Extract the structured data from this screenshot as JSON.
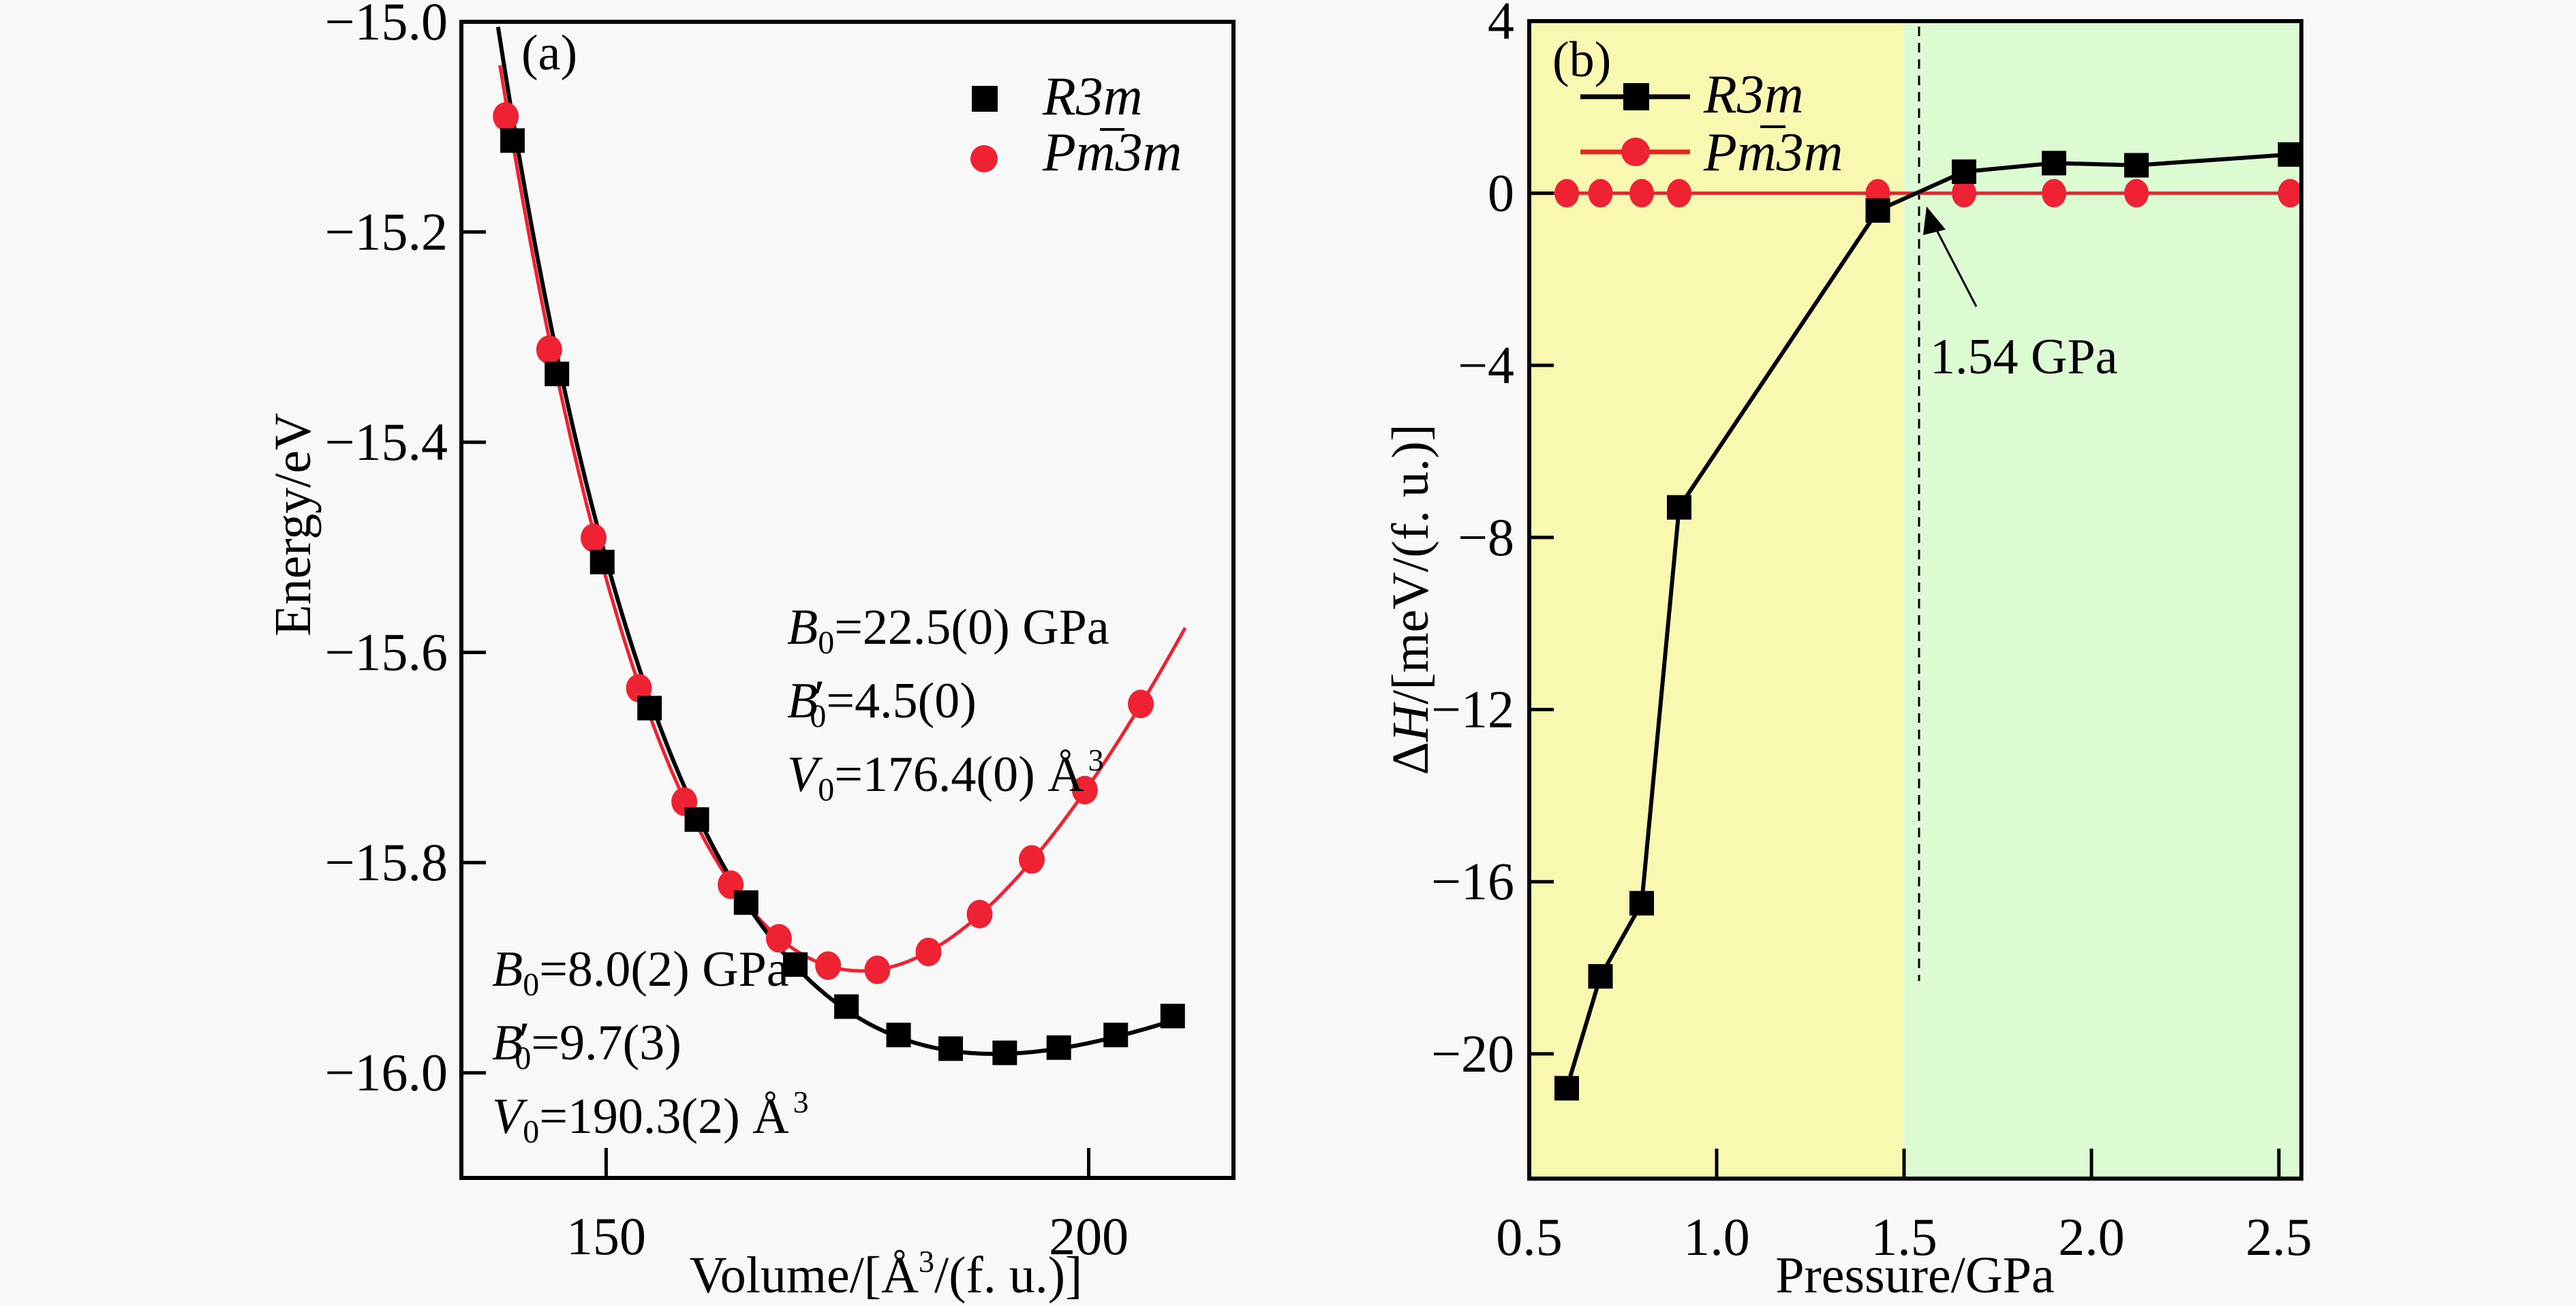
{
  "figure": {
    "background": "#f8f8f8"
  },
  "chart_data": [
    {
      "id": "a",
      "type": "scatter",
      "panel_label": "(a)",
      "title": "",
      "xlabel": "Volume/[Å³/(f. u.)]",
      "xlabel_parts": {
        "pre": "Volume/[Å",
        "sup": "3",
        "post": "/(f. u.)]"
      },
      "ylabel": "Energy/eV",
      "xlim": [
        135,
        215
      ],
      "ylim": [
        -16.1,
        -15.0
      ],
      "xticks": [
        150,
        200
      ],
      "xtick_labels": [
        "150",
        "200"
      ],
      "yticks": [
        -15.0,
        -15.2,
        -15.4,
        -15.6,
        -15.8,
        -16.0
      ],
      "ytick_labels": [
        "−15.0",
        "−15.2",
        "−15.4",
        "−15.6",
        "−15.8",
        "−16.0"
      ],
      "grid": false,
      "legend_position": "top-right",
      "series": [
        {
          "name": "R3m",
          "legend_label": "R3m",
          "marker": "square",
          "color": "#000000",
          "x": [
            140.3,
            144.9,
            149.6,
            154.5,
            159.4,
            164.5,
            169.6,
            174.9,
            180.3,
            185.7,
            191.3,
            196.9,
            202.8,
            208.7
          ],
          "y": [
            -15.113,
            -15.335,
            -15.514,
            -15.653,
            -15.759,
            -15.838,
            -15.897,
            -15.937,
            -15.964,
            -15.977,
            -15.981,
            -15.976,
            -15.964,
            -15.946
          ],
          "fit": {
            "model": "Birch-Murnaghan",
            "B0_GPa": 8.0,
            "B0_prime": 9.7,
            "V0": 190.3,
            "E0": -15.982,
            "x_range": [
              138.8,
              208.7
            ]
          }
        },
        {
          "name": "Pm-3m",
          "legend_label": "Pm3m",
          "legend_overbar_char": "3",
          "marker": "circle",
          "color": "#ee2233",
          "x": [
            139.6,
            144.1,
            148.7,
            153.4,
            158.1,
            162.9,
            167.9,
            173.0,
            178.1,
            183.4,
            188.7,
            194.1,
            199.6,
            205.4
          ],
          "y": [
            -15.09,
            -15.312,
            -15.491,
            -15.634,
            -15.742,
            -15.821,
            -15.872,
            -15.898,
            -15.902,
            -15.885,
            -15.849,
            -15.797,
            -15.731,
            -15.649
          ],
          "fit": {
            "model": "Birch-Murnaghan",
            "B0_GPa": 22.5,
            "B0_prime": 4.5,
            "V0": 176.4,
            "E0": -15.903,
            "x_range": [
              139.0,
              210.0
            ]
          }
        }
      ],
      "annotations": [
        {
          "color": "#e8283c",
          "lines": [
            {
              "sym": "B",
              "sub": "0",
              "prime": false,
              "text": "=22.5(0) GPa"
            },
            {
              "sym": "B",
              "sub": "0",
              "prime": true,
              "text": "=4.5(0)"
            },
            {
              "sym": "V",
              "sub": "0",
              "prime": false,
              "text": "=176.4(0) Å",
              "sup": "3"
            }
          ]
        },
        {
          "color": "#000000",
          "lines": [
            {
              "sym": "B",
              "sub": "0",
              "prime": false,
              "text": "=8.0(2) GPa"
            },
            {
              "sym": "B",
              "sub": "0",
              "prime": true,
              "text": "=9.7(3)"
            },
            {
              "sym": "V",
              "sub": "0",
              "prime": false,
              "text": "=190.3(2) Å",
              "sup": "3"
            }
          ]
        }
      ]
    },
    {
      "id": "b",
      "type": "line",
      "panel_label": "(b)",
      "title": "",
      "xlabel": "Pressure/GPa",
      "ylabel": "ΔH/[meV/(f. u.)]",
      "ylabel_parts": {
        "delta": "Δ",
        "sym": "H",
        "post": "/[meV/(f. u.)]"
      },
      "xlim": [
        0.5,
        2.56
      ],
      "ylim": [
        -22.9,
        4
      ],
      "xticks": [
        0.5,
        1.0,
        1.5,
        2.0,
        2.5
      ],
      "xtick_labels": [
        "0.5",
        "1.0",
        "1.5",
        "2.0",
        "2.5"
      ],
      "yticks": [
        4,
        0,
        -4,
        -8,
        -12,
        -16,
        -20
      ],
      "ytick_labels": [
        "4",
        "0",
        "−4",
        "−8",
        "−12",
        "−16",
        "−20"
      ],
      "grid": false,
      "legend_position": "top-left",
      "regions": [
        {
          "name": "R3m-stable",
          "x_from": 0.5,
          "x_to": 1.5,
          "color": "#f8f8b0"
        },
        {
          "name": "Pm-3m-stable",
          "x_from": 1.5,
          "x_to": 2.56,
          "color": "#dcfbd2"
        }
      ],
      "transition": {
        "pressure": 1.54,
        "label": "1.54 GPa"
      },
      "series": [
        {
          "name": "R3m",
          "legend_label": "R3m",
          "marker": "square",
          "color": "#000000",
          "x": [
            0.6,
            0.69,
            0.8,
            0.9,
            1.43,
            1.66,
            1.9,
            2.12,
            2.53
          ],
          "y": [
            -20.8,
            -18.2,
            -16.5,
            -7.3,
            -0.4,
            0.5,
            0.7,
            0.65,
            0.9
          ]
        },
        {
          "name": "Pm-3m",
          "legend_label": "Pm3m",
          "legend_overbar_char": "3",
          "marker": "circle",
          "color": "#ee2233",
          "x": [
            0.6,
            0.69,
            0.8,
            0.9,
            1.43,
            1.66,
            1.9,
            2.12,
            2.53
          ],
          "y": [
            0,
            0,
            0,
            0,
            0,
            0,
            0,
            0,
            0
          ]
        }
      ]
    }
  ]
}
